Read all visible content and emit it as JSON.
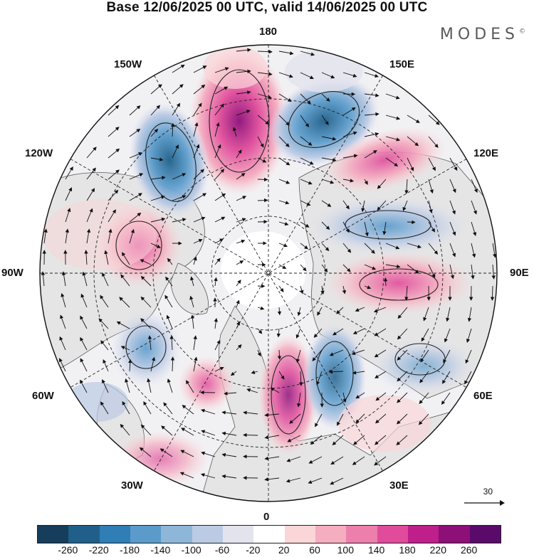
{
  "title": "Base 12/06/2025 00 UTC, valid 14/06/2025 00 UTC",
  "brand": "MODES",
  "brand_mark": "©",
  "map": {
    "projection": "north-polar-stereographic",
    "longitude_labels": [
      "180",
      "150E",
      "120E",
      "90E",
      "60E",
      "30E",
      "0",
      "30W",
      "60W",
      "90W",
      "120W",
      "150W"
    ],
    "colors": {
      "land": "#e5e5e5",
      "ocean": "#ffffff",
      "coast": "#5a5a5a",
      "grid": "#222222",
      "vectors": "#111111"
    }
  },
  "reference_vector": {
    "label": "30",
    "icon": "arrow-right-icon"
  },
  "colorbar": {
    "colors": [
      "#163d5c",
      "#1f5f89",
      "#2f7eb5",
      "#5a9bcb",
      "#8eb6d9",
      "#bccbe4",
      "#e3e3ee",
      "#ffffff",
      "#fad6d8",
      "#f5adc0",
      "#ec7fab",
      "#e04c9b",
      "#be1f8a",
      "#8c1078",
      "#5a0a6b"
    ],
    "tick_labels": [
      "-260",
      "-220",
      "-180",
      "-140",
      "-100",
      "-60",
      "-20",
      "20",
      "60",
      "100",
      "140",
      "180",
      "220",
      "260"
    ]
  }
}
